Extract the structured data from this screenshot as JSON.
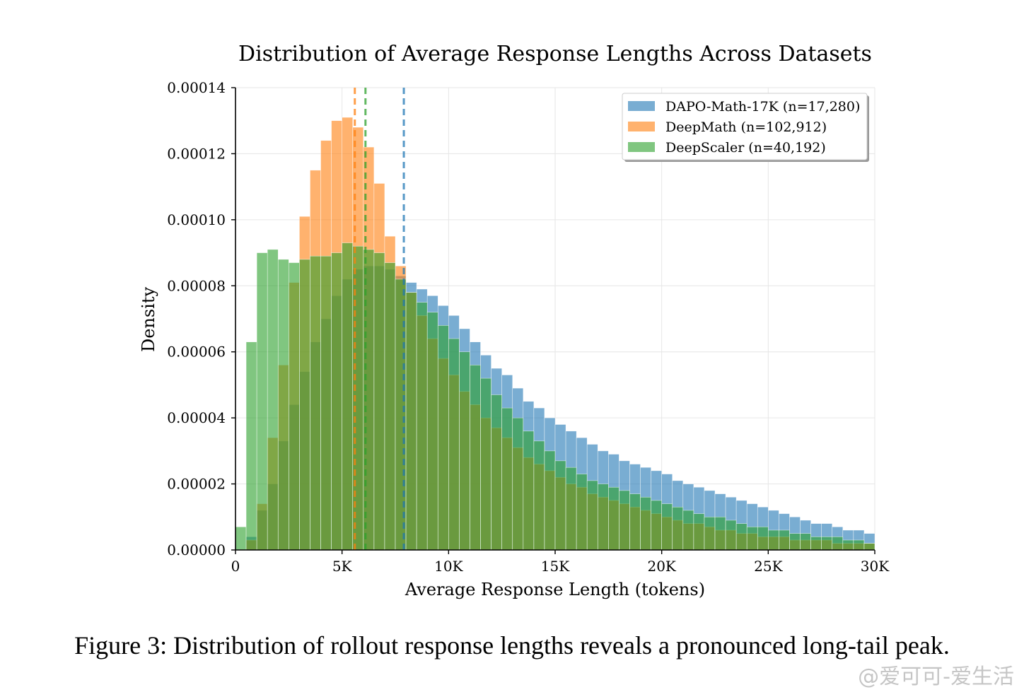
{
  "caption": "Figure 3: Distribution of rollout response lengths reveals a pronounced long-tail peak.",
  "watermark": "@爱可可-爱生活",
  "chart_data": {
    "type": "histogram",
    "title": "Distribution of Average Response Lengths Across Datasets",
    "xlabel": "Average Response Length (tokens)",
    "ylabel": "Density",
    "xlim": [
      0,
      30000
    ],
    "ylim": [
      0,
      0.00014
    ],
    "x_ticks": [
      0,
      5000,
      10000,
      15000,
      20000,
      25000,
      30000
    ],
    "x_tick_labels": [
      "0",
      "5K",
      "10K",
      "15K",
      "20K",
      "25K",
      "30K"
    ],
    "y_ticks": [
      0,
      2e-05,
      4e-05,
      6e-05,
      8e-05,
      0.0001,
      0.00012,
      0.00014
    ],
    "y_tick_labels": [
      "0.00000",
      "0.00002",
      "0.00004",
      "0.00006",
      "0.00008",
      "0.00010",
      "0.00012",
      "0.00014"
    ],
    "grid": true,
    "legend_position": "top-right",
    "bin_width": 500,
    "bin_start": 0,
    "series": [
      {
        "name": "DAPO-Math-17K (n=17,280)",
        "color": "#1f77b4",
        "mean": 7900,
        "values": [
          0,
          4e-06,
          1.2e-05,
          2e-05,
          3.3e-05,
          4.4e-05,
          5.4e-05,
          6.3e-05,
          7e-05,
          7.7e-05,
          8.2e-05,
          8.5e-05,
          8.6e-05,
          8.6e-05,
          8.5e-05,
          8.3e-05,
          8.1e-05,
          7.9e-05,
          7.7e-05,
          7.4e-05,
          7.1e-05,
          6.7e-05,
          6.3e-05,
          5.9e-05,
          5.5e-05,
          5.3e-05,
          4.9e-05,
          4.5e-05,
          4.3e-05,
          4e-05,
          3.8e-05,
          3.6e-05,
          3.4e-05,
          3.2e-05,
          3e-05,
          2.9e-05,
          2.7e-05,
          2.6e-05,
          2.5e-05,
          2.4e-05,
          2.3e-05,
          2.1e-05,
          2e-05,
          1.9e-05,
          1.8e-05,
          1.7e-05,
          1.6e-05,
          1.5e-05,
          1.4e-05,
          1.3e-05,
          1.2e-05,
          1.1e-05,
          1e-05,
          9e-06,
          8e-06,
          8e-06,
          7e-06,
          6e-06,
          6e-06,
          5e-06
        ]
      },
      {
        "name": "DeepMath (n=102,912)",
        "color": "#ff7f0e",
        "mean": 5600,
        "values": [
          0,
          3e-06,
          1.4e-05,
          3.4e-05,
          5.6e-05,
          8.1e-05,
          0.000101,
          0.000115,
          0.000124,
          0.00013,
          0.000131,
          0.000128,
          0.000122,
          0.000111,
          9.5e-05,
          8.6e-05,
          7.8e-05,
          7.1e-05,
          6.4e-05,
          5.8e-05,
          5.3e-05,
          4.8e-05,
          4.4e-05,
          4e-05,
          3.7e-05,
          3.4e-05,
          3.1e-05,
          2.8e-05,
          2.6e-05,
          2.4e-05,
          2.2e-05,
          2e-05,
          1.9e-05,
          1.7e-05,
          1.6e-05,
          1.5e-05,
          1.4e-05,
          1.3e-05,
          1.2e-05,
          1.1e-05,
          1e-05,
          9e-06,
          8e-06,
          8e-06,
          7e-06,
          6e-06,
          6e-06,
          5e-06,
          5e-06,
          4e-06,
          4e-06,
          4e-06,
          3e-06,
          3e-06,
          3e-06,
          3e-06,
          2e-06,
          2e-06,
          2e-06,
          2e-06
        ]
      },
      {
        "name": "DeepScaler (n=40,192)",
        "color": "#2ca02c",
        "mean": 6100,
        "values": [
          7e-06,
          6.3e-05,
          9e-05,
          9.1e-05,
          8.8e-05,
          8.7e-05,
          8.8e-05,
          8.9e-05,
          8.9e-05,
          9e-05,
          9.3e-05,
          9.2e-05,
          9.1e-05,
          9e-05,
          8.7e-05,
          8.2e-05,
          7.8e-05,
          7.5e-05,
          7.2e-05,
          6.8e-05,
          6.4e-05,
          6e-05,
          5.6e-05,
          5.2e-05,
          4.7e-05,
          4.3e-05,
          4e-05,
          3.6e-05,
          3.3e-05,
          3e-05,
          2.7e-05,
          2.5e-05,
          2.3e-05,
          2.1e-05,
          2e-05,
          1.9e-05,
          1.8e-05,
          1.7e-05,
          1.6e-05,
          1.5e-05,
          1.4e-05,
          1.3e-05,
          1.2e-05,
          1.1e-05,
          1e-05,
          1e-05,
          9e-06,
          8e-06,
          7e-06,
          7e-06,
          6e-06,
          6e-06,
          5e-06,
          5e-06,
          4e-06,
          4e-06,
          4e-06,
          3e-06,
          3e-06,
          2e-06
        ]
      }
    ]
  }
}
